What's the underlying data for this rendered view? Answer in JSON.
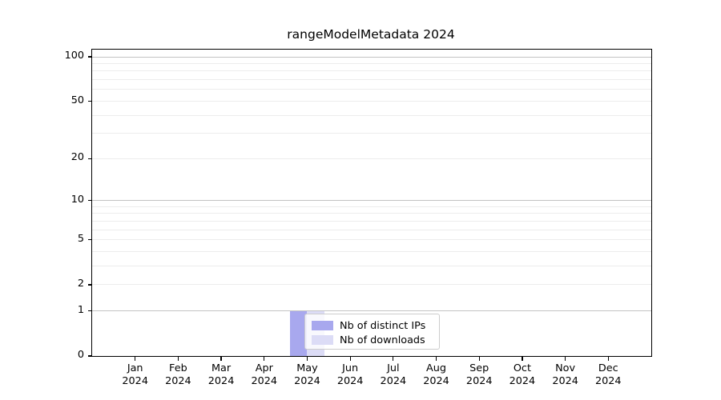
{
  "chart_data": {
    "type": "bar",
    "title": "rangeModelMetadata 2024",
    "categories": [
      "Jan",
      "Feb",
      "Mar",
      "Apr",
      "May",
      "Jun",
      "Jul",
      "Aug",
      "Sep",
      "Oct",
      "Nov",
      "Dec"
    ],
    "x_year_label": "2024",
    "series": [
      {
        "name": "Nb of distinct IPs",
        "color": "#a8a8ee",
        "values": [
          0,
          0,
          0,
          0,
          1,
          0,
          0,
          0,
          0,
          0,
          0,
          0
        ]
      },
      {
        "name": "Nb of downloads",
        "color": "#dcdcf6",
        "values": [
          0,
          0,
          0,
          0,
          1,
          0,
          0,
          0,
          0,
          0,
          0,
          0
        ]
      }
    ],
    "yscale": "log1p",
    "ylim": [
      0,
      112
    ],
    "ytick_values": [
      0,
      1,
      2,
      5,
      10,
      20,
      50,
      100
    ],
    "major_grid_values": [
      1,
      10,
      100
    ],
    "minor_grid_values": [
      2,
      3,
      4,
      5,
      6,
      7,
      8,
      9,
      20,
      30,
      40,
      50,
      60,
      70,
      80,
      90
    ],
    "grid": "both",
    "legend_position": "inside-lower-center",
    "colors": {
      "major_grid": "#c3c3c3",
      "minor_grid": "#ececec",
      "spine": "#000000",
      "text": "#000000",
      "background": "#ffffff"
    }
  }
}
